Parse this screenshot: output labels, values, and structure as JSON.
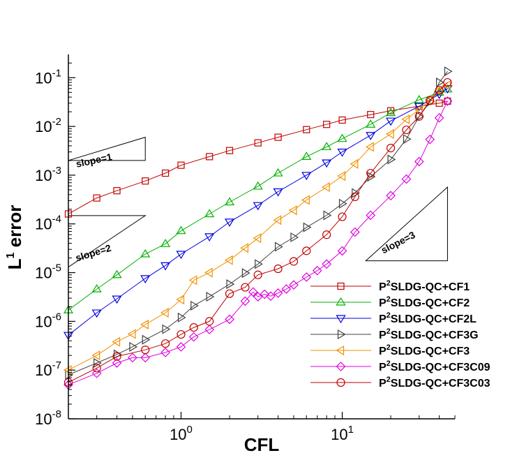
{
  "chart_data": {
    "type": "line",
    "xscale": "log",
    "yscale": "log",
    "xlabel": "CFL",
    "ylabel": "L1 error",
    "ylabel_parts": {
      "base": "L",
      "sup": "1",
      "rest": " error"
    },
    "xlim": [
      0.2,
      50
    ],
    "ylim": [
      1e-08,
      0.3
    ],
    "x_ticks": [
      {
        "value": 1,
        "base": "10",
        "exp": "0"
      },
      {
        "value": 10,
        "base": "10",
        "exp": "1"
      }
    ],
    "y_ticks": [
      {
        "value": 1e-08,
        "base": "10",
        "exp": "-8"
      },
      {
        "value": 1e-07,
        "base": "10",
        "exp": "-7"
      },
      {
        "value": 1e-06,
        "base": "10",
        "exp": "-6"
      },
      {
        "value": 1e-05,
        "base": "10",
        "exp": "-5"
      },
      {
        "value": 0.0001,
        "base": "10",
        "exp": "-4"
      },
      {
        "value": 0.001,
        "base": "10",
        "exp": "-3"
      },
      {
        "value": 0.01,
        "base": "10",
        "exp": "-2"
      },
      {
        "value": 0.1,
        "base": "10",
        "exp": "-1"
      }
    ],
    "legend_position": "bottom-right",
    "series": [
      {
        "name": "P2SLDG-QC+CF1",
        "prefix": "P",
        "sup": "2",
        "suffix": "SLDG-QC+CF1",
        "color": "#c00000",
        "marker": "square",
        "x": [
          0.2,
          0.3,
          0.4,
          0.6,
          0.8,
          1.0,
          1.5,
          2.0,
          3.0,
          4.0,
          6.0,
          8.0,
          10,
          15,
          20,
          30,
          40,
          45
        ],
        "y": [
          0.00016,
          0.00034,
          0.00048,
          0.00076,
          0.0011,
          0.0016,
          0.0024,
          0.0032,
          0.0046,
          0.006,
          0.0086,
          0.011,
          0.0135,
          0.0175,
          0.021,
          0.026,
          0.03,
          0.033
        ]
      },
      {
        "name": "P2SLDG-QC+CF2",
        "prefix": "P",
        "sup": "2",
        "suffix": "SLDG-QC+CF2",
        "color": "#00b000",
        "marker": "triangle-up",
        "x": [
          0.2,
          0.3,
          0.4,
          0.6,
          0.8,
          1.0,
          1.5,
          2.0,
          3.0,
          4.0,
          6.0,
          8.0,
          10,
          15,
          20,
          30,
          40,
          45
        ],
        "y": [
          1.7e-06,
          4.6e-06,
          9e-06,
          2.4e-05,
          3.9e-05,
          7.2e-05,
          0.00016,
          0.00028,
          0.00059,
          0.0011,
          0.0024,
          0.0038,
          0.0056,
          0.011,
          0.019,
          0.035,
          0.05,
          0.058
        ]
      },
      {
        "name": "P2SLDG-QC+CF2L",
        "prefix": "P",
        "sup": "2",
        "suffix": "SLDG-QC+CF2L",
        "color": "#0000e0",
        "marker": "triangle-down",
        "x": [
          0.2,
          0.3,
          0.4,
          0.6,
          0.8,
          1.0,
          1.5,
          2.0,
          3.0,
          4.0,
          6.0,
          8.0,
          10,
          15,
          20,
          30,
          40,
          45
        ],
        "y": [
          5.2e-07,
          1.5e-06,
          2.9e-06,
          7.6e-06,
          1.4e-05,
          2.4e-05,
          5.5e-05,
          0.00011,
          0.00024,
          0.00046,
          0.001,
          0.0018,
          0.003,
          0.0066,
          0.013,
          0.026,
          0.046,
          0.06
        ]
      },
      {
        "name": "P2SLDG-QC+CF3G",
        "prefix": "P",
        "sup": "2",
        "suffix": "SLDG-QC+CF3G",
        "color": "#404040",
        "marker": "triangle-right",
        "x": [
          0.2,
          0.3,
          0.4,
          0.5,
          0.6,
          0.8,
          1.0,
          1.2,
          1.5,
          2.0,
          2.5,
          3.0,
          4.0,
          5.0,
          6.0,
          8.0,
          10,
          12,
          15,
          20,
          25,
          30,
          35,
          40,
          45
        ],
        "y": [
          8e-08,
          1.4e-07,
          2.1e-07,
          3e-07,
          4.2e-07,
          6.9e-07,
          1.2e-06,
          2.1e-06,
          3.2e-06,
          5.8e-06,
          9.8e-06,
          1.5e-05,
          3.4e-05,
          5.3e-05,
          8.5e-05,
          0.00015,
          0.00026,
          0.00043,
          0.00093,
          0.0021,
          0.0055,
          0.016,
          0.032,
          0.08,
          0.135
        ]
      },
      {
        "name": "P2SLDG-QC+CF3",
        "prefix": "P",
        "sup": "2",
        "suffix": "SLDG-QC+CF3",
        "color": "#f09000",
        "marker": "triangle-left",
        "x": [
          0.2,
          0.3,
          0.4,
          0.5,
          0.6,
          0.8,
          1.0,
          1.2,
          1.5,
          2.0,
          2.5,
          3.0,
          4.0,
          5.0,
          6.0,
          8.0,
          10,
          12,
          15,
          20,
          25,
          30,
          35,
          40,
          45
        ],
        "y": [
          1e-07,
          2e-07,
          3.8e-07,
          5.5e-07,
          8.6e-07,
          1.5e-06,
          2.8e-06,
          7e-06,
          1e-05,
          1.8e-05,
          3.2e-05,
          5.1e-05,
          0.00012,
          0.00019,
          0.00031,
          0.00057,
          0.00096,
          0.0017,
          0.0038,
          0.007,
          0.014,
          0.022,
          0.035,
          0.055,
          0.07
        ]
      },
      {
        "name": "P2SLDG-QC+CF3C09",
        "prefix": "P",
        "sup": "2",
        "suffix": "SLDG-QC+CF3C09",
        "color": "#e000e0",
        "marker": "diamond",
        "x": [
          0.2,
          0.3,
          0.4,
          0.5,
          0.6,
          0.8,
          1.0,
          1.2,
          1.5,
          2.0,
          2.5,
          2.8,
          3.0,
          3.3,
          3.6,
          4.0,
          4.5,
          5.0,
          6.0,
          7.0,
          8.0,
          10,
          12,
          15,
          20,
          25,
          30,
          35,
          40,
          45
        ],
        "y": [
          5e-08,
          8.6e-08,
          1.4e-07,
          1.8e-07,
          1.8e-07,
          2.3e-07,
          3e-07,
          4.8e-07,
          6.8e-07,
          1.1e-06,
          2.6e-06,
          4e-06,
          3.2e-06,
          3.6e-06,
          3.3e-06,
          3.8e-06,
          4.6e-06,
          5.6e-06,
          8.1e-06,
          1.1e-05,
          1.5e-05,
          2.8e-05,
          6.8e-05,
          0.00015,
          0.00038,
          0.00083,
          0.0019,
          0.0054,
          0.015,
          0.033
        ]
      },
      {
        "name": "P2SLDG-QC+CF3C03",
        "prefix": "P",
        "sup": "2",
        "suffix": "SLDG-QC+CF3C03",
        "color": "#c00000",
        "marker": "circle",
        "x": [
          0.2,
          0.3,
          0.4,
          0.6,
          0.8,
          1.0,
          1.2,
          1.5,
          2.0,
          2.5,
          3.0,
          4.0,
          5.0,
          6.0,
          8.0,
          10,
          12,
          15,
          20,
          25,
          30,
          35,
          40,
          45
        ],
        "y": [
          5.6e-08,
          1.1e-07,
          1.9e-07,
          2.6e-07,
          3.5e-07,
          5.4e-07,
          7.5e-07,
          1e-06,
          3.7e-06,
          5e-06,
          9e-06,
          1.2e-05,
          1.7e-05,
          2.8e-05,
          6e-05,
          0.00014,
          0.00036,
          0.0011,
          0.0036,
          0.0085,
          0.016,
          0.034,
          0.055,
          0.08
        ]
      }
    ],
    "annotations": [
      {
        "text": "slope=1",
        "slope": 1,
        "triangle_corners": [
          [
            0.2,
            0.002
          ],
          [
            0.6,
            0.006
          ],
          [
            0.6,
            0.002
          ]
        ]
      },
      {
        "text": "slope=2",
        "slope": 2,
        "triangle_corners": [
          [
            0.2,
            0.000148
          ],
          [
            0.2,
            1.3e-05
          ],
          [
            0.6,
            0.000148
          ]
        ]
      },
      {
        "text": "slope=3",
        "slope": 3,
        "triangle_corners": [
          [
            45,
            0.00057
          ],
          [
            45,
            1.75e-05
          ],
          [
            14,
            1.75e-05
          ]
        ]
      }
    ]
  }
}
